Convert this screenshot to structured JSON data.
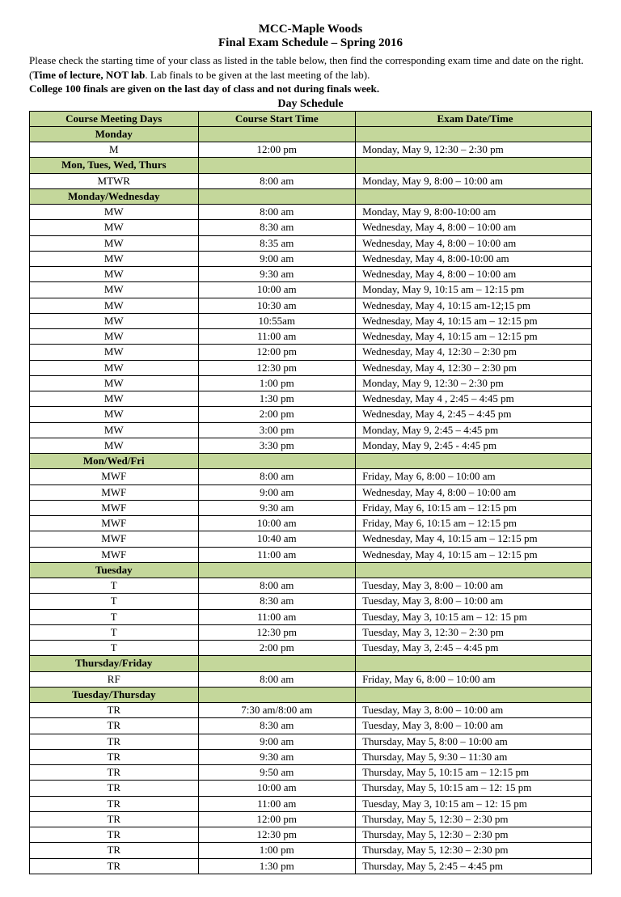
{
  "title1": "MCC-Maple Woods",
  "title2": "Final Exam Schedule – Spring 2016",
  "intro_pre": "Please check the starting time of your class as listed in the table below, then find the corresponding exam time and date on the right.  (",
  "intro_bold1": "Time of lecture, NOT lab",
  "intro_mid": ".  Lab finals to be given at the last meeting of ",
  "intro_tail": "the lab).",
  "intro_line2": "College 100 finals are given on the last day of class and not during finals week.",
  "day_schedule": "Day Schedule",
  "headers": {
    "days": "Course Meeting Days",
    "start": "Course Start Time",
    "exam": "Exam Date/Time"
  },
  "sections": [
    {
      "label": "Monday",
      "rows": [
        {
          "days": "M",
          "start": "12:00 pm",
          "exam": "Monday, May 9, 12:30 – 2:30 pm"
        }
      ]
    },
    {
      "label": "Mon, Tues, Wed, Thurs",
      "rows": [
        {
          "days": "MTWR",
          "start": "8:00 am",
          "exam": "Monday, May 9, 8:00 – 10:00 am"
        }
      ]
    },
    {
      "label": "Monday/Wednesday",
      "rows": [
        {
          "days": "MW",
          "start": "8:00 am",
          "exam": "Monday, May 9, 8:00-10:00 am"
        },
        {
          "days": "MW",
          "start": "8:30 am",
          "exam": "Wednesday, May 4, 8:00 – 10:00 am"
        },
        {
          "days": "MW",
          "start": "8:35 am",
          "exam": "Wednesday, May 4, 8:00 – 10:00 am"
        },
        {
          "days": "MW",
          "start": "9:00 am",
          "exam": "Wednesday, May 4, 8:00-10:00 am"
        },
        {
          "days": "MW",
          "start": "9:30 am",
          "exam": "Wednesday, May 4, 8:00 – 10:00 am"
        },
        {
          "days": "MW",
          "start": "10:00 am",
          "exam": "Monday, May 9, 10:15 am – 12:15 pm"
        },
        {
          "days": "MW",
          "start": "10:30 am",
          "exam": "Wednesday, May 4, 10:15 am-12;15 pm"
        },
        {
          "days": "MW",
          "start": "10:55am",
          "exam": "Wednesday, May 4, 10:15 am – 12:15 pm"
        },
        {
          "days": "MW",
          "start": "11:00 am",
          "exam": "Wednesday, May 4, 10:15 am – 12:15 pm"
        },
        {
          "days": "MW",
          "start": "12:00 pm",
          "exam": "Wednesday, May 4, 12:30 – 2:30 pm"
        },
        {
          "days": "MW",
          "start": "12:30 pm",
          "exam": "Wednesday, May 4, 12:30 – 2:30 pm"
        },
        {
          "days": "MW",
          "start": "1:00 pm",
          "exam": "Monday, May 9, 12:30 – 2:30 pm"
        },
        {
          "days": "MW",
          "start": "1:30 pm",
          "exam": "Wednesday, May 4 , 2:45 – 4:45 pm"
        },
        {
          "days": "MW",
          "start": "2:00 pm",
          "exam": "Wednesday, May 4, 2:45 – 4:45 pm"
        },
        {
          "days": "MW",
          "start": "3:00 pm",
          "exam": "Monday, May 9, 2:45 – 4:45 pm"
        },
        {
          "days": "MW",
          "start": "3:30 pm",
          "exam": "Monday, May 9, 2:45 - 4:45 pm"
        }
      ]
    },
    {
      "label": "Mon/Wed/Fri",
      "rows": [
        {
          "days": "MWF",
          "start": "8:00 am",
          "exam": "Friday, May 6, 8:00 – 10:00 am"
        },
        {
          "days": "MWF",
          "start": "9:00 am",
          "exam": "Wednesday, May 4, 8:00 – 10:00 am"
        },
        {
          "days": "MWF",
          "start": "9:30 am",
          "exam": "Friday, May 6, 10:15 am – 12:15 pm"
        },
        {
          "days": "MWF",
          "start": "10:00 am",
          "exam": "Friday, May 6, 10:15 am – 12:15 pm"
        },
        {
          "days": "MWF",
          "start": "10:40 am",
          "exam": "Wednesday, May 4, 10:15 am – 12:15 pm"
        },
        {
          "days": "MWF",
          "start": "11:00 am",
          "exam": "Wednesday, May 4, 10:15 am – 12:15 pm"
        }
      ]
    },
    {
      "label": "Tuesday",
      "rows": [
        {
          "days": "T",
          "start": "8:00 am",
          "exam": "Tuesday, May 3, 8:00 – 10:00 am"
        },
        {
          "days": "T",
          "start": "8:30 am",
          "exam": "Tuesday, May 3, 8:00 – 10:00 am"
        },
        {
          "days": "T",
          "start": "11:00 am",
          "exam": "Tuesday, May 3, 10:15 am – 12: 15 pm"
        },
        {
          "days": "T",
          "start": "12:30 pm",
          "exam": "Tuesday, May 3, 12:30 – 2:30 pm"
        },
        {
          "days": "T",
          "start": "2:00 pm",
          "exam": "Tuesday, May 3, 2:45 – 4:45 pm"
        }
      ]
    },
    {
      "label": "Thursday/Friday",
      "rows": [
        {
          "days": "RF",
          "start": "8:00 am",
          "exam": "Friday, May 6, 8:00 – 10:00 am"
        }
      ]
    },
    {
      "label": "Tuesday/Thursday",
      "rows": [
        {
          "days": "TR",
          "start": "7:30 am/8:00 am",
          "exam": "Tuesday, May 3, 8:00 – 10:00 am"
        },
        {
          "days": "TR",
          "start": "8:30 am",
          "exam": "Tuesday, May 3, 8:00 – 10:00 am"
        },
        {
          "days": "TR",
          "start": "9:00 am",
          "exam": "Thursday, May 5, 8:00 – 10:00 am"
        },
        {
          "days": "TR",
          "start": "9:30 am",
          "exam": "Thursday, May 5, 9:30 – 11:30 am"
        },
        {
          "days": "TR",
          "start": "9:50 am",
          "exam": "Thursday, May 5, 10:15 am – 12:15 pm"
        },
        {
          "days": "TR",
          "start": "10:00 am",
          "exam": "Thursday, May 5, 10:15 am – 12: 15 pm"
        },
        {
          "days": "TR",
          "start": "11:00 am",
          "exam": "Tuesday, May 3, 10:15 am – 12: 15 pm"
        },
        {
          "days": "TR",
          "start": "12:00 pm",
          "exam": "Thursday, May 5, 12:30 – 2:30 pm"
        },
        {
          "days": "TR",
          "start": "12:30 pm",
          "exam": "Thursday, May 5, 12:30 – 2:30 pm"
        },
        {
          "days": "TR",
          "start": "1:00 pm",
          "exam": "Thursday, May 5, 12:30 – 2:30 pm"
        },
        {
          "days": "TR",
          "start": "1:30 pm",
          "exam": "Thursday, May 5, 2:45 – 4:45 pm"
        }
      ]
    }
  ]
}
